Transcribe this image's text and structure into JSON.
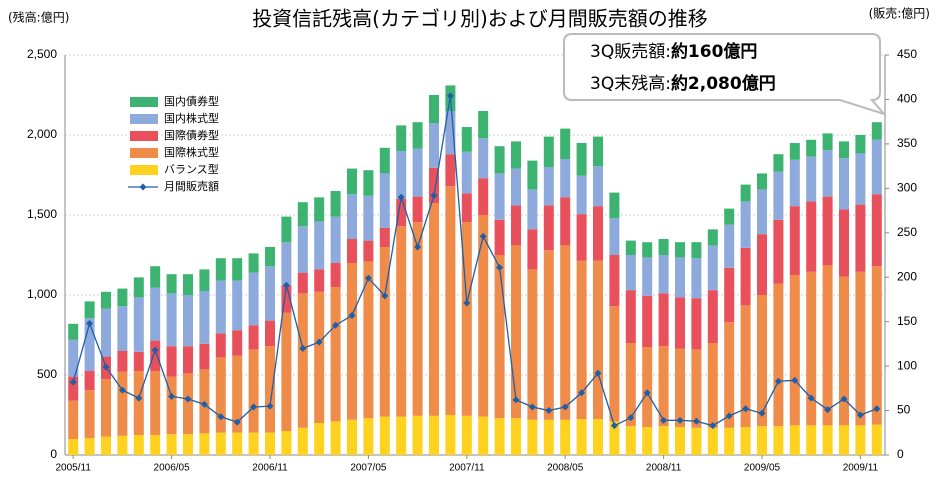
{
  "chart_data": {
    "type": "bar",
    "stacked": true,
    "title": "投資信託残高(カテゴリ別)および月間販売額の推移",
    "y_label": "(残高:億円)",
    "y2_label": "(販売:億円)",
    "annotations": [
      {
        "label": "3Q販売額:",
        "text": "約160億円"
      },
      {
        "label": "3Q末残高:",
        "text": "約2,080億円"
      }
    ],
    "categories": [
      "2005/11",
      null,
      null,
      null,
      null,
      null,
      "2006/05",
      null,
      null,
      null,
      null,
      null,
      "2006/11",
      null,
      null,
      null,
      null,
      null,
      "2007/05",
      null,
      null,
      null,
      null,
      null,
      "2007/11",
      null,
      null,
      null,
      null,
      null,
      "2008/05",
      null,
      null,
      null,
      null,
      null,
      "2008/11",
      null,
      null,
      null,
      null,
      null,
      "2009/05",
      null,
      null,
      null,
      null,
      null,
      "2009/11",
      null
    ],
    "ylim": [
      0,
      2500
    ],
    "yticks": [
      0,
      500,
      {
        "value": 1000,
        "label": "1,000"
      },
      {
        "value": 1500,
        "label": "1,500"
      },
      {
        "value": 2000,
        "label": "2,000"
      },
      {
        "value": 2500,
        "label": "2,500"
      }
    ],
    "y2lim": [
      0,
      450
    ],
    "y2ticks": [
      0,
      50,
      100,
      150,
      200,
      250,
      300,
      350,
      400,
      450
    ],
    "grid": true,
    "series": [
      {
        "name": "バランス型",
        "color": "#ffd21f",
        "values": [
          100,
          105,
          115,
          120,
          125,
          125,
          130,
          130,
          135,
          140,
          140,
          140,
          140,
          150,
          170,
          200,
          210,
          220,
          230,
          240,
          240,
          245,
          245,
          250,
          245,
          240,
          230,
          230,
          220,
          220,
          220,
          225,
          225,
          210,
          180,
          175,
          180,
          175,
          170,
          170,
          170,
          175,
          180,
          180,
          185,
          185,
          185,
          185,
          185,
          190
        ]
      },
      {
        "name": "国際株式型",
        "color": "#f08c4a",
        "values": [
          240,
          300,
          360,
          400,
          400,
          400,
          360,
          380,
          400,
          470,
          480,
          520,
          540,
          740,
          840,
          820,
          840,
          980,
          980,
          1060,
          1190,
          1210,
          1330,
          1430,
          1210,
          1260,
          1020,
          1080,
          940,
          1060,
          1090,
          990,
          990,
          720,
          520,
          500,
          500,
          490,
          490,
          530,
          660,
          760,
          820,
          890,
          940,
          960,
          1000,
          930,
          960,
          990
        ]
      },
      {
        "name": "国際債券型",
        "color": "#e8505b",
        "values": [
          150,
          120,
          140,
          130,
          120,
          190,
          190,
          170,
          160,
          150,
          160,
          150,
          160,
          170,
          130,
          140,
          150,
          150,
          130,
          120,
          170,
          160,
          220,
          200,
          180,
          230,
          220,
          250,
          250,
          280,
          300,
          290,
          340,
          320,
          330,
          320,
          330,
          320,
          320,
          330,
          340,
          360,
          380,
          400,
          430,
          440,
          430,
          420,
          420,
          450
        ]
      },
      {
        "name": "国内株式型",
        "color": "#8eaadc",
        "values": [
          230,
          330,
          300,
          280,
          340,
          330,
          330,
          320,
          330,
          330,
          310,
          330,
          340,
          270,
          290,
          300,
          290,
          280,
          280,
          340,
          300,
          300,
          280,
          270,
          260,
          250,
          290,
          230,
          250,
          240,
          240,
          240,
          250,
          230,
          220,
          240,
          240,
          250,
          250,
          280,
          270,
          290,
          280,
          300,
          290,
          280,
          290,
          320,
          320,
          340
        ]
      },
      {
        "name": "国内債券型",
        "color": "#3cb371",
        "values": [
          100,
          105,
          105,
          110,
          125,
          135,
          120,
          130,
          135,
          140,
          140,
          120,
          120,
          160,
          150,
          150,
          160,
          160,
          160,
          160,
          160,
          165,
          175,
          160,
          155,
          170,
          170,
          170,
          180,
          190,
          190,
          205,
          185,
          160,
          90,
          95,
          100,
          95,
          100,
          100,
          100,
          105,
          100,
          110,
          105,
          105,
          105,
          105,
          115,
          110
        ]
      },
      {
        "name": "月間販売額",
        "color": "#1f5fa8",
        "type": "line",
        "axis": "y2",
        "values": [
          82,
          148,
          99,
          73,
          64,
          118,
          66,
          63,
          57,
          43,
          37,
          54,
          55,
          191,
          120,
          127,
          146,
          157,
          199,
          179,
          290,
          234,
          292,
          404,
          171,
          246,
          211,
          62,
          54,
          50,
          54,
          70,
          92,
          33,
          42,
          70,
          39,
          39,
          38,
          33,
          44,
          52,
          47,
          83,
          84,
          64,
          51,
          63,
          45,
          52
        ]
      }
    ]
  }
}
